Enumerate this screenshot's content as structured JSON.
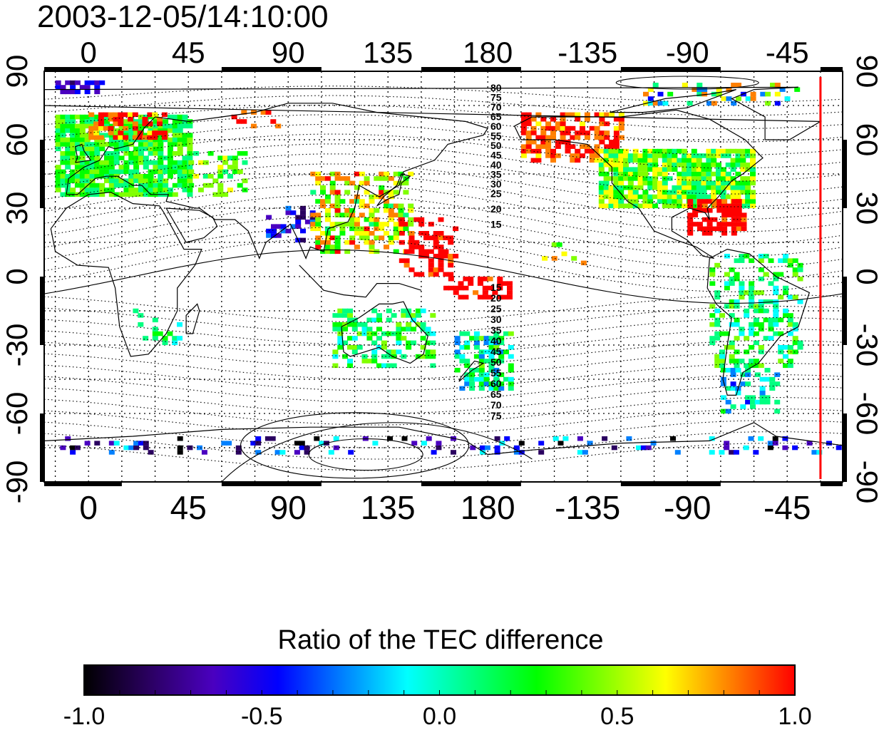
{
  "timestamp": "2003-12-05/14:10:00",
  "longitude_axis": {
    "ticks": [
      {
        "lon": 0,
        "label": "0"
      },
      {
        "lon": 45,
        "label": "45"
      },
      {
        "lon": 90,
        "label": "90"
      },
      {
        "lon": 135,
        "label": "135"
      },
      {
        "lon": 180,
        "label": "180"
      },
      {
        "lon": 225,
        "label": "-135"
      },
      {
        "lon": 270,
        "label": "-90"
      },
      {
        "lon": 315,
        "label": "-45"
      }
    ],
    "range": [
      -20,
      340
    ]
  },
  "latitude_axis": {
    "ticks": [
      {
        "lat": 90,
        "label": "90"
      },
      {
        "lat": 60,
        "label": "60"
      },
      {
        "lat": 30,
        "label": "30"
      },
      {
        "lat": 0,
        "label": "0"
      },
      {
        "lat": -30,
        "label": "-30"
      },
      {
        "lat": -60,
        "label": "-60"
      },
      {
        "lat": -90,
        "label": "-90"
      }
    ],
    "range": [
      -90,
      90
    ]
  },
  "magnetic_latitude_labels": {
    "north": [
      "80",
      "75",
      "70",
      "65",
      "60",
      "55",
      "50",
      "45",
      "40",
      "35",
      "30",
      "25",
      "20",
      "15"
    ],
    "south": [
      "15",
      "20",
      "25",
      "30",
      "35",
      "40",
      "45",
      "50",
      "55",
      "60",
      "65",
      "70",
      "75"
    ]
  },
  "colorbar": {
    "title": "Ratio of the TEC difference",
    "range": [
      -1.0,
      1.0
    ],
    "ticks": [
      "-1.0",
      "-0.5",
      "0.0",
      "0.5",
      "1.0"
    ],
    "colors": [
      "#000000",
      "#2a0060",
      "#4a00c0",
      "#0000ff",
      "#0080ff",
      "#00ffff",
      "#00ff80",
      "#00ff00",
      "#80ff00",
      "#ffff00",
      "#ff8000",
      "#ff0000"
    ]
  },
  "terminator": {
    "lon": 330,
    "color": "#ff0000"
  }
}
